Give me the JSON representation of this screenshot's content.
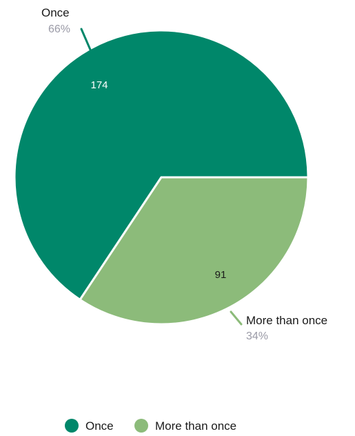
{
  "chart_data": {
    "type": "pie",
    "slices": [
      {
        "label": "Once",
        "value": 174,
        "percent_label": "66%",
        "color": "#00876a",
        "value_text_color": "#ffffff"
      },
      {
        "label": "More than once",
        "value": 91,
        "percent_label": "34%",
        "color": "#8cbb7a",
        "value_text_color": "#1a1a1a"
      }
    ],
    "start_angle_deg": 0,
    "direction": "counterclockwise",
    "legend": {
      "position": "bottom",
      "entries": [
        "Once",
        "More than once"
      ]
    }
  }
}
